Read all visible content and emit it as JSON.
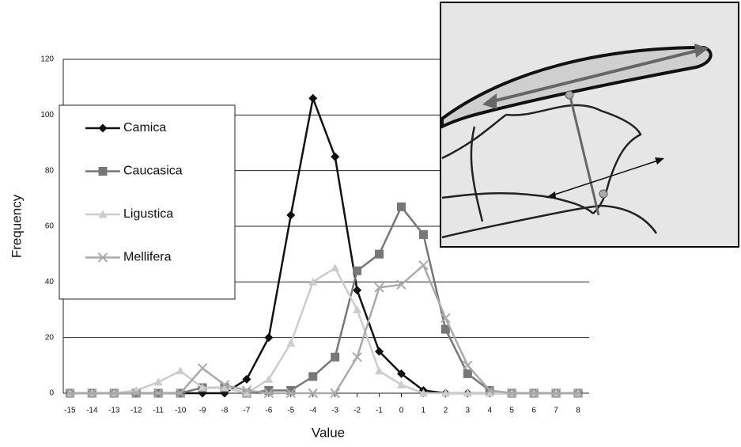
{
  "chart_data": {
    "type": "line",
    "x_label": "Value",
    "y_label": "Frequency",
    "x": [
      -15,
      -14,
      -13,
      -12,
      -11,
      -10,
      -9,
      -8,
      -7,
      -6,
      -5,
      -4,
      -3,
      -2,
      -1,
      0,
      1,
      2,
      3,
      4,
      5,
      6,
      7,
      8
    ],
    "xticks": [
      -15,
      -14,
      -13,
      -12,
      -11,
      -10,
      -9,
      -8,
      -7,
      -6,
      -5,
      -4,
      -3,
      -2,
      -1,
      0,
      1,
      2,
      3,
      4,
      5,
      6,
      7,
      8
    ],
    "xlim": [
      -15.3,
      8.5
    ],
    "ylim": [
      0,
      120
    ],
    "yticks": [
      0,
      20,
      40,
      60,
      80,
      100,
      120
    ],
    "grid": true,
    "legend": "left",
    "series": [
      {
        "name": "Camica",
        "color": "#111111",
        "marker": "diamond",
        "values": [
          0,
          0,
          0,
          0,
          0,
          0,
          0,
          0,
          5,
          20,
          64,
          106,
          85,
          37,
          15,
          7,
          1,
          0,
          0,
          0,
          0,
          0,
          0,
          0
        ]
      },
      {
        "name": "Caucasica",
        "color": "#777777",
        "marker": "square",
        "values": [
          0,
          0,
          0,
          0,
          0,
          0,
          2,
          2,
          0,
          1,
          1,
          6,
          13,
          44,
          50,
          67,
          57,
          23,
          7,
          1,
          0,
          0,
          0,
          0
        ]
      },
      {
        "name": "Ligustica",
        "color": "#cccccc",
        "marker": "triangle",
        "values": [
          0,
          0,
          0,
          1,
          4,
          8,
          2,
          2,
          0,
          5,
          18,
          40,
          45,
          30,
          8,
          3,
          0,
          0,
          0,
          0,
          0,
          0,
          0,
          0
        ]
      },
      {
        "name": "Mellifera",
        "color": "#aaaaaa",
        "marker": "x",
        "values": [
          0,
          0,
          0,
          0,
          0,
          0,
          9,
          3,
          1,
          0,
          0,
          0,
          0,
          13,
          38,
          39,
          46,
          27,
          10,
          1,
          0,
          0,
          0,
          0
        ]
      }
    ]
  }
}
